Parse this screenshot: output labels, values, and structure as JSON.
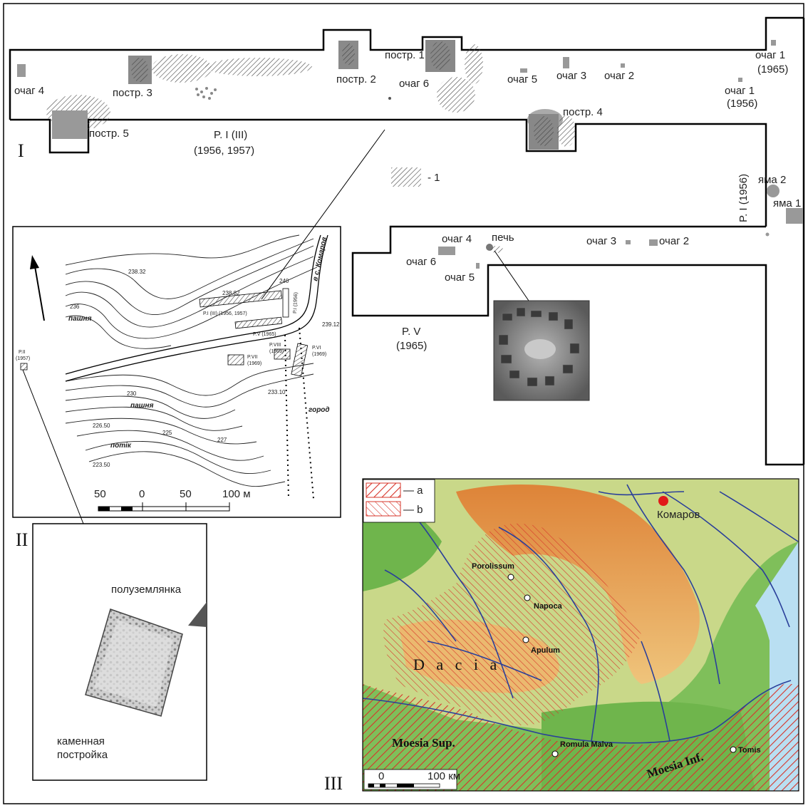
{
  "panels": {
    "I": "I",
    "II": "II",
    "III": "III"
  },
  "excavation": {
    "trench_P_I_III": "P. I (III)",
    "trench_P_I_III_years": "(1956, 1957)",
    "trench_P_I_1956": "P. I (1956)",
    "trench_P_V": "P. V",
    "trench_P_V_year": "(1965)",
    "legend_1": "- 1",
    "features": {
      "ochag4_top": "очаг 4",
      "postr3": "постр. 3",
      "postr5": "постр. 5",
      "postr2": "постр. 2",
      "postr1": "постр. 1",
      "ochag6_top": "очаг 6",
      "ochag5_top": "очаг 5",
      "ochag3_top": "очаг 3",
      "ochag2_top": "очаг 2",
      "ochag1_1965": "очаг 1",
      "ochag1_1965_year": "(1965)",
      "ochag1_1956": "очаг 1",
      "ochag1_1956_year": "(1956)",
      "postr4": "постр. 4",
      "yama2": "яма 2",
      "yama1": "яма 1",
      "ochag4_pv": "очаг 4",
      "pech": "печь",
      "ochag6_pv": "очаг 6",
      "ochag5_pv": "очаг 5",
      "ochag3_pv": "очаг 3",
      "ochag2_pv": "очаг 2"
    }
  },
  "topo": {
    "elev_23832": "238.32",
    "elev_23882": "238.82",
    "elev_23912": "239.12",
    "elev_23310": "233.10",
    "elev_22650": "226.50",
    "elev_22350": "223.50",
    "contour_240": "240",
    "contour_236": "236",
    "contour_230": "230",
    "contour_227": "227",
    "contour_225": "225",
    "pashnya_top": "пашня",
    "pashnya_bottom": "пашня",
    "gorod": "город",
    "potok": "потік",
    "road_label": "в с. Комаров",
    "t_PI_III": "P.I (III) (1956, 1957)",
    "t_PV": "P.V (1965)",
    "t_PVII": "P.VII",
    "t_PVII_y": "(1969)",
    "t_PVIII": "P.VIII",
    "t_PVIII_y": "(1969)",
    "t_PVI": "P.VI",
    "t_PVI_y": "(1969)",
    "t_PII": "P.II",
    "t_PII_y": "(1957)",
    "t_PI_1956": "P.I (1956)",
    "scale_50l": "50",
    "scale_0": "0",
    "scale_50r": "50",
    "scale_100": "100 м"
  },
  "building": {
    "semi_dugout": "полуземлянка",
    "stone_1": "каменная",
    "stone_2": "постройка"
  },
  "map": {
    "legend_a": "— a",
    "legend_b": "— b",
    "komarov": "Комаров",
    "porolissum": "Porolissum",
    "napoca": "Napoca",
    "apulum": "Apulum",
    "romula": "Romula Malva",
    "tomis": "Tomis",
    "dacia": "D   a   c   i   a",
    "moesia_sup": "Moesia Sup.",
    "moesia_inf": "Moesia Inf.",
    "scale_0": "0",
    "scale_100": "100 км",
    "colors": {
      "river": "#2a3f9a",
      "hatch": "#d7342a",
      "sea": "#b9dff2",
      "komarov_dot": "#e11a1a"
    }
  }
}
